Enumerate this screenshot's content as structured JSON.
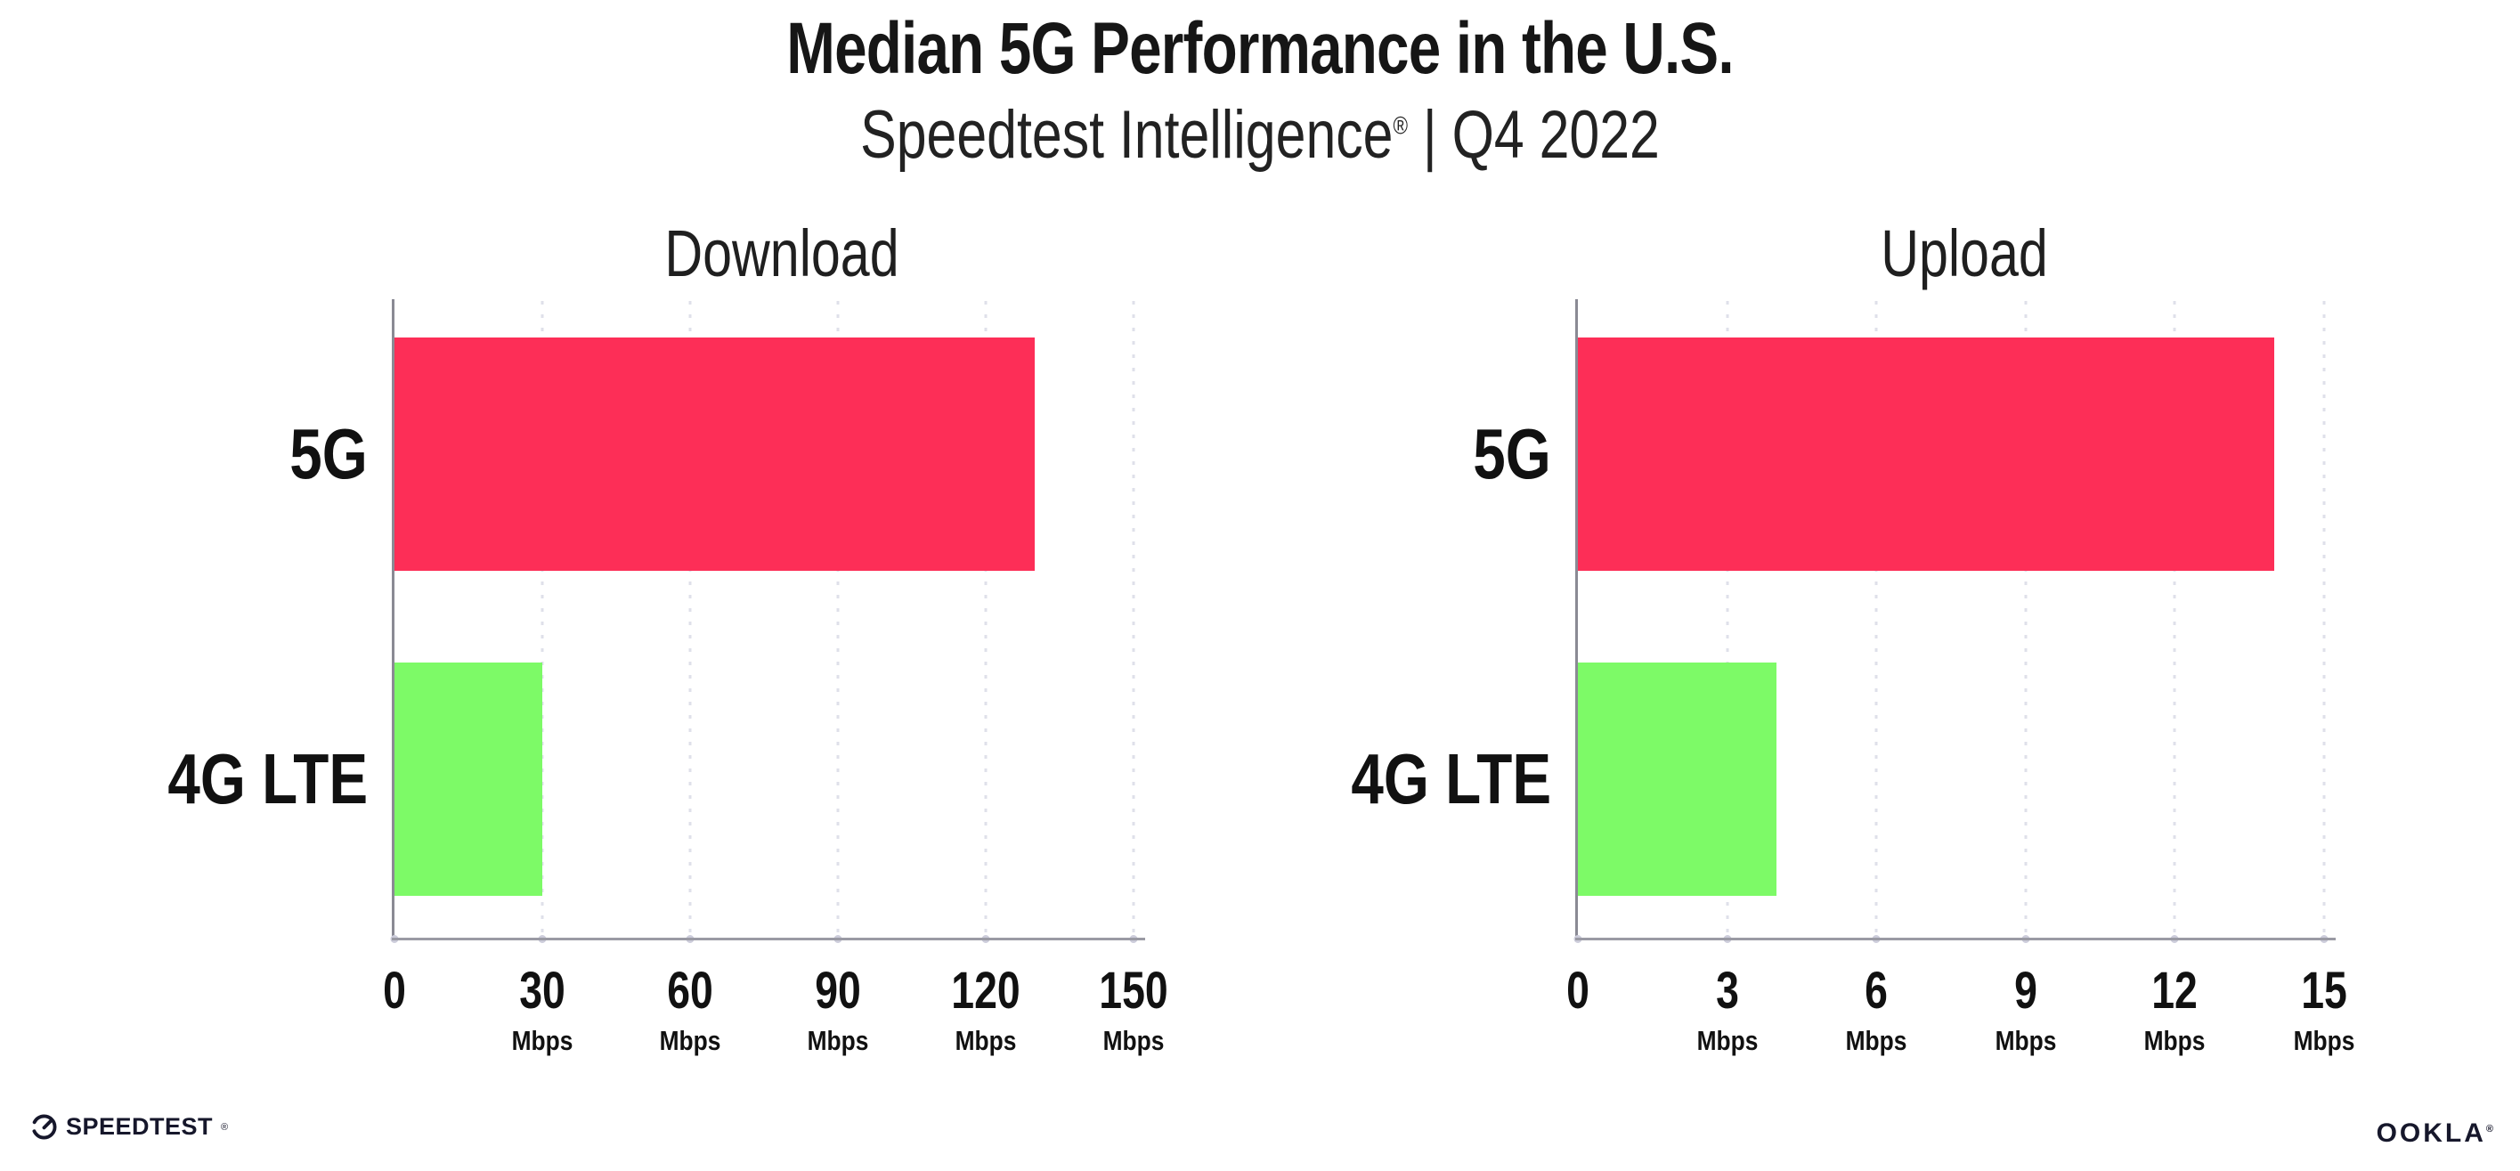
{
  "header": {
    "title": "Median 5G Performance in the U.S.",
    "subtitle_brand": "Speedtest Intelligence",
    "subtitle_reg": "®",
    "subtitle_rest": " | Q4 2022"
  },
  "chart_data": [
    {
      "type": "bar",
      "orientation": "horizontal",
      "title": "Download",
      "categories": [
        "5G",
        "4G LTE"
      ],
      "values": [
        130,
        30
      ],
      "unit": "Mbps",
      "xlim": [
        0,
        150
      ],
      "grid": "dotted vertical gridlines every 30 Mbps",
      "legend": "none",
      "bar_colors": [
        "#fd2e57",
        "#7dfa67"
      ],
      "ticks": [
        {
          "label": "0",
          "unit": ""
        },
        {
          "label": "30",
          "unit": "Mbps"
        },
        {
          "label": "60",
          "unit": "Mbps"
        },
        {
          "label": "90",
          "unit": "Mbps"
        },
        {
          "label": "120",
          "unit": "Mbps"
        },
        {
          "label": "150",
          "unit": "Mbps"
        }
      ]
    },
    {
      "type": "bar",
      "orientation": "horizontal",
      "title": "Upload",
      "categories": [
        "5G",
        "4G LTE"
      ],
      "values": [
        14,
        4
      ],
      "unit": "Mbps",
      "xlim": [
        0,
        15
      ],
      "grid": "dotted vertical gridlines every 3 Mbps",
      "legend": "none",
      "bar_colors": [
        "#fd2e57",
        "#7dfa67"
      ],
      "ticks": [
        {
          "label": "0",
          "unit": ""
        },
        {
          "label": "3",
          "unit": "Mbps"
        },
        {
          "label": "6",
          "unit": "Mbps"
        },
        {
          "label": "9",
          "unit": "Mbps"
        },
        {
          "label": "12",
          "unit": "Mbps"
        },
        {
          "label": "15",
          "unit": "Mbps"
        }
      ]
    }
  ],
  "footer": {
    "speedtest_icon": "speedometer-gauge-icon",
    "speedtest_text": "SPEEDTEST",
    "speedtest_mark": "®",
    "ookla_text": "OOKLA",
    "ookla_mark": "®"
  },
  "colors": {
    "background": "#ffffff",
    "bar_5g": "#fd2e57",
    "bar_4g_lte": "#7dfa67",
    "axis_line": "#9a9aa4",
    "gridline_dots": "#dfe0ea",
    "text": "#1c1c1c",
    "logo_text": "#16172b"
  }
}
